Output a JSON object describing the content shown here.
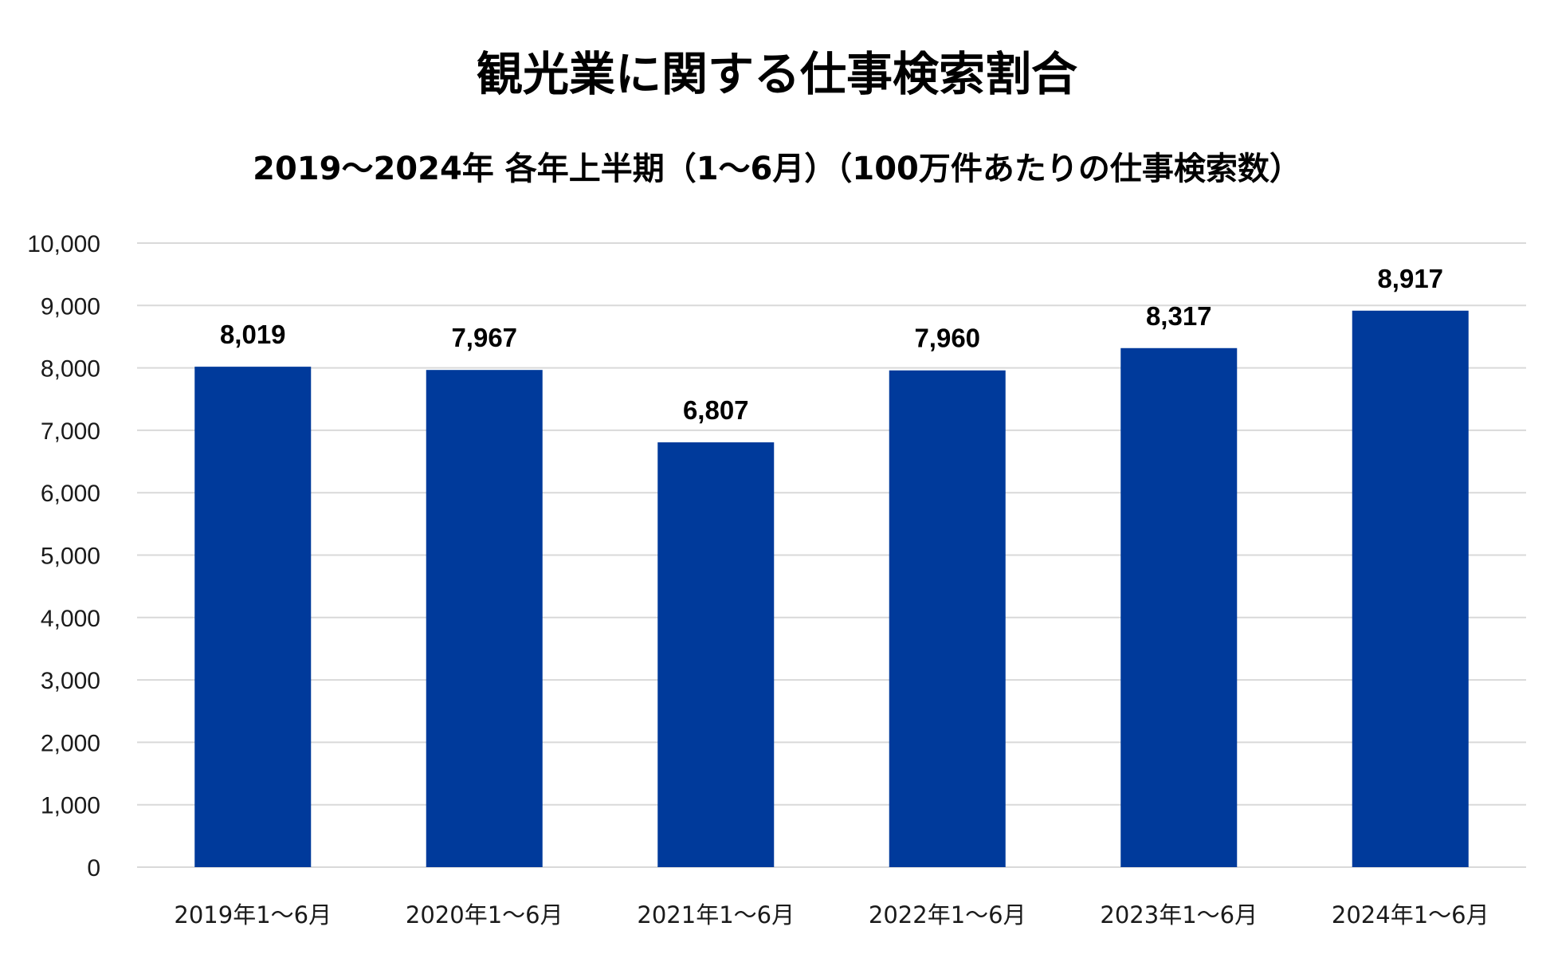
{
  "chart_data": {
    "type": "bar",
    "title": "観光業に関する仕事検索割合",
    "subtitle": "2019〜2024年 各年上半期（1〜6月）（100万件あたりの仕事検索数）",
    "categories": [
      "2019年1〜6月",
      "2020年1〜6月",
      "2021年1〜6月",
      "2022年1〜6月",
      "2023年1〜6月",
      "2024年1〜6月"
    ],
    "values": [
      8019,
      7967,
      6807,
      7960,
      8317,
      8917
    ],
    "data_labels": [
      "8,019",
      "7,967",
      "6,807",
      "7,960",
      "8,317",
      "8,917"
    ],
    "ylim": [
      0,
      10000
    ],
    "yticks": [
      0,
      1000,
      2000,
      3000,
      4000,
      5000,
      6000,
      7000,
      8000,
      9000,
      10000
    ],
    "ytick_labels": [
      "0",
      "1,000",
      "2,000",
      "3,000",
      "4,000",
      "5,000",
      "6,000",
      "7,000",
      "8,000",
      "9,000",
      "10,000"
    ],
    "xlabel": "",
    "ylabel": "",
    "grid": true,
    "legend": "none",
    "bar_color": "#003A9B",
    "gridline_color": "#D9D9D9"
  }
}
